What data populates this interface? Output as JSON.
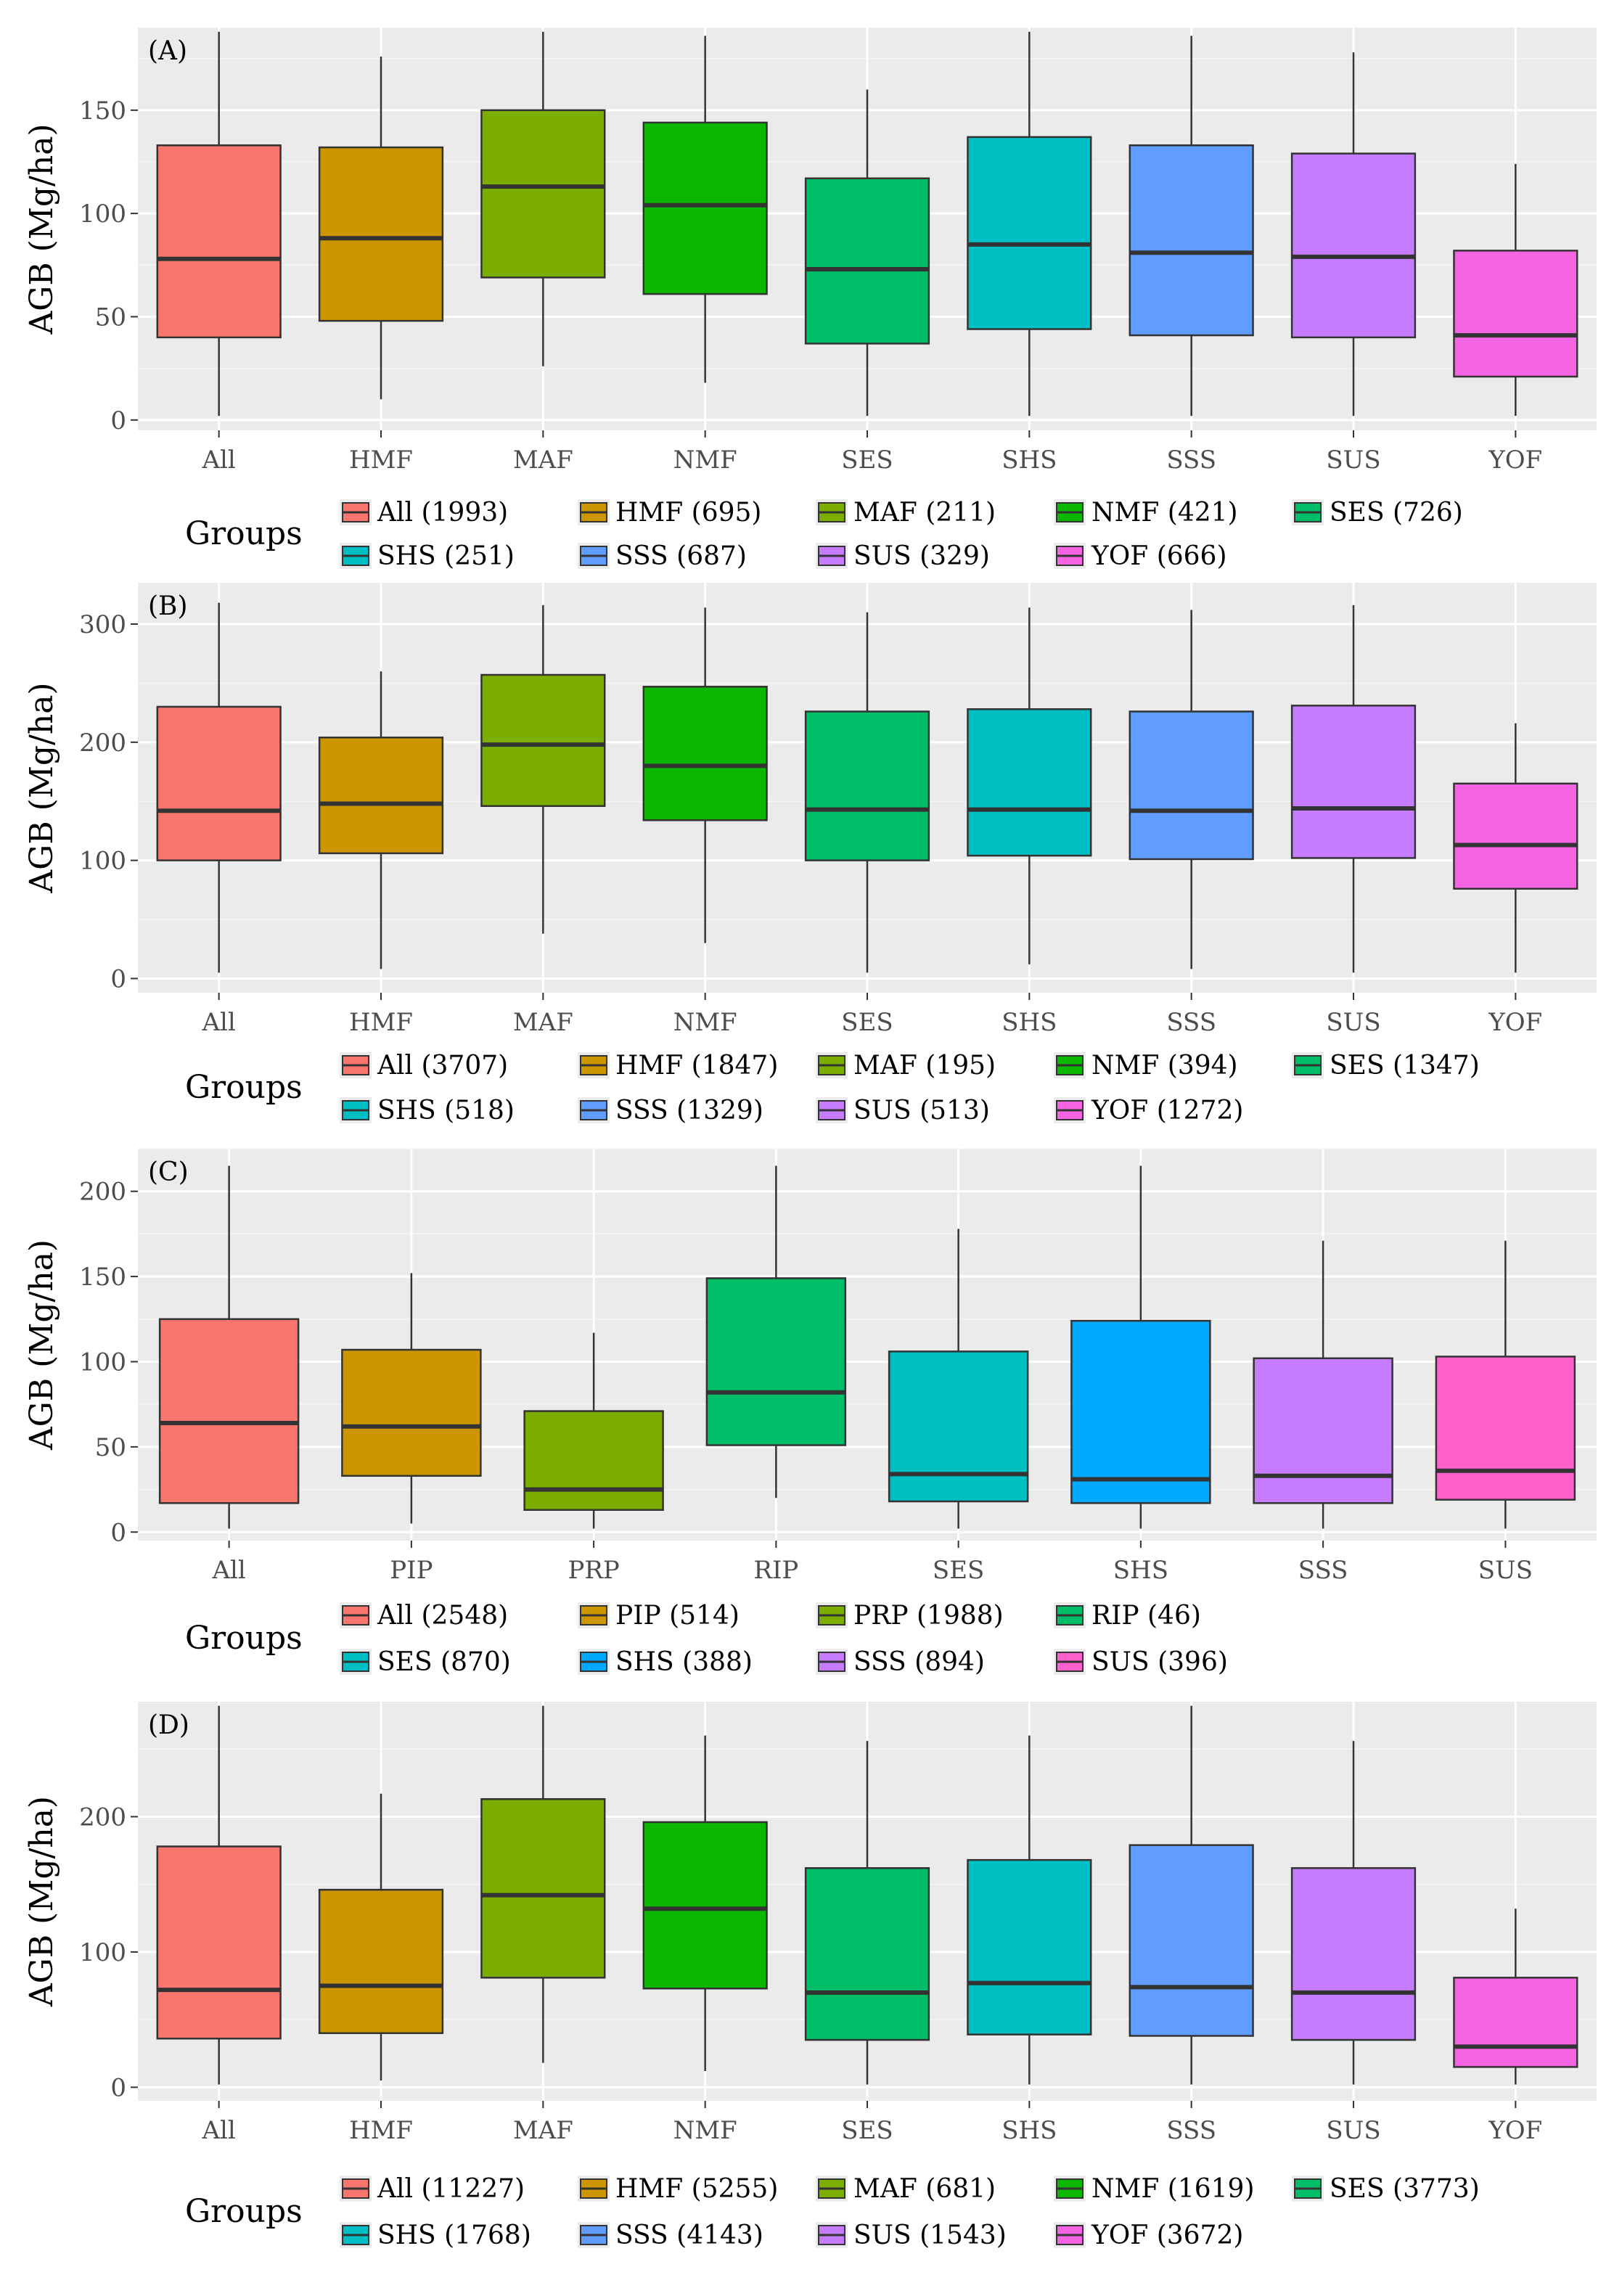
{
  "chart_data": [
    {
      "panel": "(A)",
      "type": "boxplot",
      "ylabel": "AGB (Mg/ha)",
      "ylim": [
        -5,
        190
      ],
      "yticks": [
        0,
        50,
        100,
        150
      ],
      "ytick_labels": [
        "0",
        "50",
        "100",
        "150"
      ],
      "legend_title": "Groups",
      "legend_rows": [
        5,
        4
      ],
      "groups": [
        {
          "name": "All",
          "legend": "All (1993)",
          "color": "#F8766D",
          "min": 2,
          "q1": 40,
          "median": 78,
          "q3": 133,
          "max": 188
        },
        {
          "name": "HMF",
          "legend": "HMF (695)",
          "color": "#CD9600",
          "min": 10,
          "q1": 48,
          "median": 88,
          "q3": 132,
          "max": 176
        },
        {
          "name": "MAF",
          "legend": "MAF (211)",
          "color": "#7CAE00",
          "min": 26,
          "q1": 69,
          "median": 113,
          "q3": 150,
          "max": 188
        },
        {
          "name": "NMF",
          "legend": "NMF (421)",
          "color": "#0CB702",
          "min": 18,
          "q1": 61,
          "median": 104,
          "q3": 144,
          "max": 186
        },
        {
          "name": "SES",
          "legend": "SES (726)",
          "color": "#00BE67",
          "min": 2,
          "q1": 37,
          "median": 73,
          "q3": 117,
          "max": 160
        },
        {
          "name": "SHS",
          "legend": "SHS (251)",
          "color": "#00BFC4",
          "min": 2,
          "q1": 44,
          "median": 85,
          "q3": 137,
          "max": 188
        },
        {
          "name": "SSS",
          "legend": "SSS (687)",
          "color": "#619CFF",
          "min": 2,
          "q1": 41,
          "median": 81,
          "q3": 133,
          "max": 186
        },
        {
          "name": "SUS",
          "legend": "SUS (329)",
          "color": "#C77CFF",
          "min": 2,
          "q1": 40,
          "median": 79,
          "q3": 129,
          "max": 178
        },
        {
          "name": "YOF",
          "legend": "YOF (666)",
          "color": "#F564E3",
          "min": 2,
          "q1": 21,
          "median": 41,
          "q3": 82,
          "max": 124
        }
      ]
    },
    {
      "panel": "(B)",
      "type": "boxplot",
      "ylabel": "AGB (Mg/ha)",
      "ylim": [
        -12,
        335
      ],
      "yticks": [
        0,
        100,
        200,
        300
      ],
      "ytick_labels": [
        "0",
        "100",
        "200",
        "300"
      ],
      "legend_title": "Groups",
      "legend_rows": [
        5,
        4
      ],
      "groups": [
        {
          "name": "All",
          "legend": "All (3707)",
          "color": "#F8766D",
          "min": 5,
          "q1": 100,
          "median": 142,
          "q3": 230,
          "max": 318
        },
        {
          "name": "HMF",
          "legend": "HMF (1847)",
          "color": "#CD9600",
          "min": 8,
          "q1": 106,
          "median": 148,
          "q3": 204,
          "max": 260
        },
        {
          "name": "MAF",
          "legend": "MAF (195)",
          "color": "#7CAE00",
          "min": 38,
          "q1": 146,
          "median": 198,
          "q3": 257,
          "max": 316
        },
        {
          "name": "NMF",
          "legend": "NMF (394)",
          "color": "#0CB702",
          "min": 30,
          "q1": 134,
          "median": 180,
          "q3": 247,
          "max": 314
        },
        {
          "name": "SES",
          "legend": "SES (1347)",
          "color": "#00BE67",
          "min": 5,
          "q1": 100,
          "median": 143,
          "q3": 226,
          "max": 310
        },
        {
          "name": "SHS",
          "legend": "SHS (518)",
          "color": "#00BFC4",
          "min": 12,
          "q1": 104,
          "median": 143,
          "q3": 228,
          "max": 314
        },
        {
          "name": "SSS",
          "legend": "SSS (1329)",
          "color": "#619CFF",
          "min": 8,
          "q1": 101,
          "median": 142,
          "q3": 226,
          "max": 312
        },
        {
          "name": "SUS",
          "legend": "SUS (513)",
          "color": "#C77CFF",
          "min": 5,
          "q1": 102,
          "median": 144,
          "q3": 231,
          "max": 316
        },
        {
          "name": "YOF",
          "legend": "YOF (1272)",
          "color": "#F564E3",
          "min": 5,
          "q1": 76,
          "median": 113,
          "q3": 165,
          "max": 216
        }
      ]
    },
    {
      "panel": "(C)",
      "type": "boxplot",
      "ylabel": "AGB (Mg/ha)",
      "ylim": [
        -5,
        225
      ],
      "yticks": [
        0,
        50,
        100,
        150,
        200
      ],
      "ytick_labels": [
        "0",
        "50",
        "100",
        "150",
        "200"
      ],
      "legend_title": "Groups",
      "legend_rows": [
        4,
        4
      ],
      "groups": [
        {
          "name": "All",
          "legend": "All (2548)",
          "color": "#F8766D",
          "min": 2,
          "q1": 17,
          "median": 64,
          "q3": 125,
          "max": 215
        },
        {
          "name": "PIP",
          "legend": "PIP (514)",
          "color": "#CD9600",
          "min": 5,
          "q1": 33,
          "median": 62,
          "q3": 107,
          "max": 152
        },
        {
          "name": "PRP",
          "legend": "PRP (1988)",
          "color": "#7CAE00",
          "min": 2,
          "q1": 13,
          "median": 25,
          "q3": 71,
          "max": 117
        },
        {
          "name": "RIP",
          "legend": "RIP (46)",
          "color": "#00BE67",
          "min": 20,
          "q1": 51,
          "median": 82,
          "q3": 149,
          "max": 215
        },
        {
          "name": "SES",
          "legend": "SES (870)",
          "color": "#00BFC4",
          "min": 2,
          "q1": 18,
          "median": 34,
          "q3": 106,
          "max": 178
        },
        {
          "name": "SHS",
          "legend": "SHS (388)",
          "color": "#00A9FF",
          "min": 2,
          "q1": 17,
          "median": 31,
          "q3": 124,
          "max": 215
        },
        {
          "name": "SSS",
          "legend": "SSS (894)",
          "color": "#C77CFF",
          "min": 2,
          "q1": 17,
          "median": 33,
          "q3": 102,
          "max": 171
        },
        {
          "name": "SUS",
          "legend": "SUS (396)",
          "color": "#FF61CC",
          "min": 2,
          "q1": 19,
          "median": 36,
          "q3": 103,
          "max": 171
        }
      ]
    },
    {
      "panel": "(D)",
      "type": "boxplot",
      "ylabel": "AGB (Mg/ha)",
      "ylim": [
        -10,
        285
      ],
      "yticks": [
        0,
        100,
        200
      ],
      "ytick_labels": [
        "0",
        "100",
        "200"
      ],
      "legend_title": "Groups",
      "legend_rows": [
        5,
        4
      ],
      "groups": [
        {
          "name": "All",
          "legend": "All (11227)",
          "color": "#F8766D",
          "min": 2,
          "q1": 36,
          "median": 72,
          "q3": 178,
          "max": 282
        },
        {
          "name": "HMF",
          "legend": "HMF (5255)",
          "color": "#CD9600",
          "min": 5,
          "q1": 40,
          "median": 75,
          "q3": 146,
          "max": 217
        },
        {
          "name": "MAF",
          "legend": "MAF (681)",
          "color": "#7CAE00",
          "min": 18,
          "q1": 81,
          "median": 142,
          "q3": 213,
          "max": 282
        },
        {
          "name": "NMF",
          "legend": "NMF (1619)",
          "color": "#0CB702",
          "min": 12,
          "q1": 73,
          "median": 132,
          "q3": 196,
          "max": 260
        },
        {
          "name": "SES",
          "legend": "SES (3773)",
          "color": "#00BE67",
          "min": 2,
          "q1": 35,
          "median": 70,
          "q3": 162,
          "max": 256
        },
        {
          "name": "SHS",
          "legend": "SHS (1768)",
          "color": "#00BFC4",
          "min": 2,
          "q1": 39,
          "median": 77,
          "q3": 168,
          "max": 260
        },
        {
          "name": "SSS",
          "legend": "SSS (4143)",
          "color": "#619CFF",
          "min": 2,
          "q1": 38,
          "median": 74,
          "q3": 179,
          "max": 282
        },
        {
          "name": "SUS",
          "legend": "SUS (1543)",
          "color": "#C77CFF",
          "min": 2,
          "q1": 35,
          "median": 70,
          "q3": 162,
          "max": 256
        },
        {
          "name": "YOF",
          "legend": "YOF (3672)",
          "color": "#F564E3",
          "min": 2,
          "q1": 15,
          "median": 30,
          "q3": 81,
          "max": 132
        }
      ]
    }
  ]
}
